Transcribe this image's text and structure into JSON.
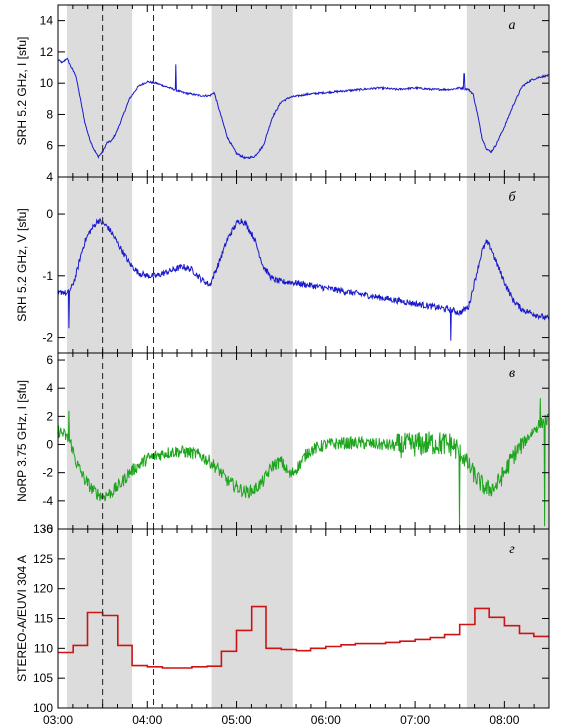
{
  "chart_data": [
    {
      "type": "line",
      "panel_letter": "а",
      "ylabel": "SRH 5.2 GHz, I [sfu]",
      "ylim": [
        4,
        15
      ],
      "yticks": [
        "4",
        "6",
        "8",
        "10",
        "12",
        "14"
      ],
      "xlim_hours": [
        3.0,
        8.5
      ],
      "color": "#1a1acc",
      "noise": 0.06,
      "series": [
        {
          "x": [
            3.0,
            3.05,
            3.1,
            3.15,
            3.2,
            3.25,
            3.3,
            3.35,
            3.4,
            3.45,
            3.5,
            3.55,
            3.6,
            3.65,
            3.7,
            3.8,
            3.9,
            4.0,
            4.1,
            4.2,
            4.3,
            4.4,
            4.5,
            4.6,
            4.7,
            4.75,
            4.8,
            4.9,
            5.0,
            5.1,
            5.2,
            5.3,
            5.4,
            5.5,
            5.6,
            5.8,
            6.0,
            6.2,
            6.4,
            6.6,
            6.8,
            7.0,
            7.2,
            7.4,
            7.5,
            7.6,
            7.65,
            7.7,
            7.75,
            7.8,
            7.85,
            7.9,
            8.0,
            8.1,
            8.2,
            8.3,
            8.4,
            8.5
          ],
          "y": [
            11.5,
            11.3,
            11.6,
            11.0,
            10.5,
            9.0,
            7.5,
            6.5,
            5.8,
            5.3,
            5.6,
            6.2,
            6.3,
            6.8,
            7.5,
            9.0,
            9.8,
            10.1,
            10.0,
            9.8,
            9.6,
            9.4,
            9.3,
            9.2,
            9.2,
            9.4,
            8.4,
            6.5,
            5.5,
            5.2,
            5.3,
            6.0,
            7.8,
            8.8,
            9.1,
            9.3,
            9.4,
            9.5,
            9.6,
            9.7,
            9.6,
            9.7,
            9.6,
            9.6,
            9.7,
            9.6,
            9.3,
            8.0,
            6.5,
            5.8,
            5.6,
            6.0,
            7.2,
            8.6,
            9.8,
            10.2,
            10.4,
            10.5
          ]
        }
      ],
      "spikes": [
        [
          4.32,
          11.2
        ],
        [
          7.55,
          10.6
        ]
      ]
    },
    {
      "type": "line",
      "panel_letter": "б",
      "ylabel": "SRH 5.2 GHz, V [sfu]",
      "ylim": [
        -2.25,
        0.6
      ],
      "yticks": [
        "-2",
        "-1",
        "0"
      ],
      "xlim_hours": [
        3.0,
        8.5
      ],
      "color": "#1a1acc",
      "noise": 0.05,
      "series": [
        {
          "x": [
            3.0,
            3.05,
            3.1,
            3.15,
            3.2,
            3.25,
            3.3,
            3.35,
            3.4,
            3.45,
            3.5,
            3.55,
            3.6,
            3.7,
            3.8,
            3.9,
            4.0,
            4.1,
            4.2,
            4.3,
            4.4,
            4.5,
            4.6,
            4.7,
            4.8,
            4.9,
            5.0,
            5.05,
            5.1,
            5.2,
            5.3,
            5.4,
            5.5,
            5.6,
            5.8,
            6.0,
            6.2,
            6.4,
            6.6,
            6.8,
            7.0,
            7.2,
            7.4,
            7.5,
            7.6,
            7.7,
            7.75,
            7.8,
            7.85,
            7.9,
            8.0,
            8.1,
            8.2,
            8.3,
            8.4,
            8.5
          ],
          "y": [
            -1.3,
            -1.25,
            -1.3,
            -1.2,
            -1.0,
            -0.7,
            -0.45,
            -0.3,
            -0.2,
            -0.1,
            -0.15,
            -0.2,
            -0.3,
            -0.55,
            -0.8,
            -0.95,
            -1.0,
            -1.0,
            -0.95,
            -0.9,
            -0.85,
            -0.9,
            -1.05,
            -1.15,
            -0.8,
            -0.4,
            -0.15,
            -0.1,
            -0.15,
            -0.4,
            -0.85,
            -1.05,
            -1.1,
            -1.1,
            -1.15,
            -1.2,
            -1.25,
            -1.3,
            -1.35,
            -1.4,
            -1.45,
            -1.5,
            -1.55,
            -1.6,
            -1.5,
            -0.9,
            -0.6,
            -0.45,
            -0.55,
            -0.75,
            -1.1,
            -1.4,
            -1.55,
            -1.6,
            -1.65,
            -1.7
          ]
        }
      ],
      "spikes": [
        [
          3.12,
          -1.85
        ],
        [
          7.4,
          -2.05
        ]
      ]
    },
    {
      "type": "line",
      "panel_letter": "в",
      "ylabel": "NoRP 3.75 GHz, I [sfu]",
      "ylim": [
        -6,
        6.5
      ],
      "yticks": [
        "-6",
        "-4",
        "-2",
        "0",
        "2",
        "4",
        "6"
      ],
      "xlim_hours": [
        3.0,
        8.5
      ],
      "color": "#1ea51e",
      "noise": 0.45,
      "series": [
        {
          "x": [
            3.0,
            3.05,
            3.1,
            3.15,
            3.2,
            3.3,
            3.4,
            3.5,
            3.6,
            3.7,
            3.8,
            3.9,
            4.0,
            4.1,
            4.2,
            4.3,
            4.4,
            4.5,
            4.6,
            4.7,
            4.8,
            4.9,
            5.0,
            5.1,
            5.2,
            5.3,
            5.4,
            5.5,
            5.6,
            5.7,
            5.8,
            6.0,
            6.2,
            6.4,
            6.6,
            6.8,
            7.0,
            7.2,
            7.4,
            7.5,
            7.6,
            7.7,
            7.8,
            7.9,
            8.0,
            8.1,
            8.2,
            8.3,
            8.4,
            8.5
          ],
          "y": [
            1.0,
            0.8,
            0.5,
            0.0,
            -1.2,
            -2.5,
            -3.3,
            -3.7,
            -3.4,
            -2.8,
            -2.0,
            -1.5,
            -1.0,
            -0.8,
            -0.6,
            -0.5,
            -0.5,
            -0.6,
            -0.8,
            -1.2,
            -1.8,
            -2.6,
            -3.0,
            -3.4,
            -3.2,
            -2.6,
            -1.5,
            -1.2,
            -2.2,
            -1.5,
            -0.5,
            0.0,
            0.1,
            0.1,
            0.0,
            -0.1,
            0.0,
            0.1,
            0.0,
            -0.5,
            -1.5,
            -2.5,
            -3.2,
            -3.0,
            -2.0,
            -0.8,
            0.0,
            0.8,
            1.5,
            1.8
          ]
        }
      ],
      "noise_bursts": [
        [
          6.8,
          7.5,
          2.0
        ],
        [
          7.5,
          8.2,
          1.5
        ]
      ],
      "spikes": [
        [
          3.12,
          2.4
        ],
        [
          7.5,
          -6.0
        ],
        [
          8.4,
          3.3
        ],
        [
          8.45,
          -5.8
        ]
      ]
    },
    {
      "type": "line",
      "step": true,
      "panel_letter": "г",
      "ylabel": "STEREO-A/EUVI 304 A",
      "ylim": [
        100,
        130
      ],
      "yticks": [
        "100",
        "105",
        "110",
        "115",
        "120",
        "125",
        "130"
      ],
      "xlim_hours": [
        3.0,
        8.5
      ],
      "xticks": [
        "03:00",
        "04:00",
        "05:00",
        "06:00",
        "07:00",
        "08:00"
      ],
      "color": "#cc1414",
      "series": [
        {
          "x": [
            3.0,
            3.17,
            3.33,
            3.5,
            3.67,
            3.83,
            4.0,
            4.17,
            4.33,
            4.5,
            4.67,
            4.83,
            5.0,
            5.17,
            5.33,
            5.5,
            5.67,
            5.83,
            6.0,
            6.17,
            6.33,
            6.5,
            6.67,
            6.83,
            7.0,
            7.17,
            7.33,
            7.5,
            7.67,
            7.83,
            8.0,
            8.17,
            8.33,
            8.5
          ],
          "y": [
            109.3,
            110.5,
            116.0,
            115.5,
            110.5,
            107.1,
            106.9,
            106.7,
            106.7,
            106.9,
            107.0,
            109.5,
            113.0,
            117.0,
            110.0,
            109.8,
            109.6,
            110.0,
            110.3,
            110.6,
            110.8,
            110.8,
            111.0,
            111.2,
            111.5,
            111.8,
            112.3,
            114.0,
            116.7,
            115.2,
            113.8,
            112.5,
            112.0,
            112.0
          ]
        }
      ]
    }
  ],
  "shaded_intervals": [
    [
      3.1,
      3.83
    ],
    [
      4.72,
      5.63
    ],
    [
      7.58,
      8.5
    ]
  ],
  "dashed_lines": [
    3.5,
    4.07
  ]
}
